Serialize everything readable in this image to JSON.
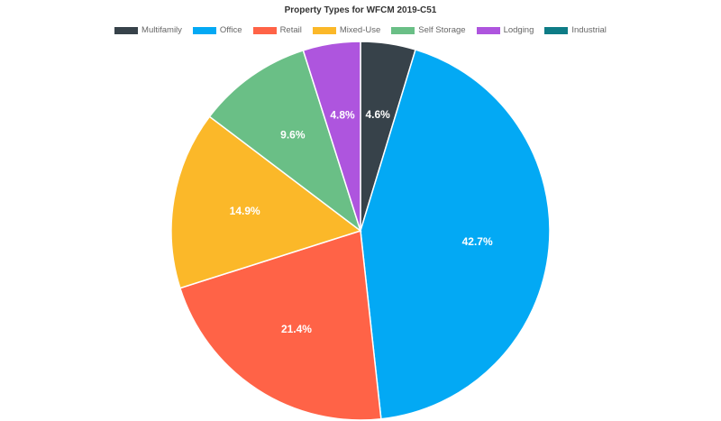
{
  "chart_data": {
    "type": "pie",
    "title": "Property Types for WFCM 2019-C51",
    "legend_position": "top",
    "slices": [
      {
        "name": "Multifamily",
        "value": 4.6,
        "label": "4.6%",
        "color": "#37424a"
      },
      {
        "name": "Office",
        "value": 42.7,
        "label": "42.7%",
        "color": "#03a9f4"
      },
      {
        "name": "Retail",
        "value": 21.4,
        "label": "21.4%",
        "color": "#ff6347"
      },
      {
        "name": "Mixed-Use",
        "value": 14.9,
        "label": "14.9%",
        "color": "#fbb829"
      },
      {
        "name": "Self Storage",
        "value": 9.6,
        "label": "9.6%",
        "color": "#6abf86"
      },
      {
        "name": "Lodging",
        "value": 4.8,
        "label": "4.8%",
        "color": "#ae55de"
      },
      {
        "name": "Industrial",
        "value": 0,
        "label": "",
        "color": "#0e7c86"
      }
    ]
  }
}
